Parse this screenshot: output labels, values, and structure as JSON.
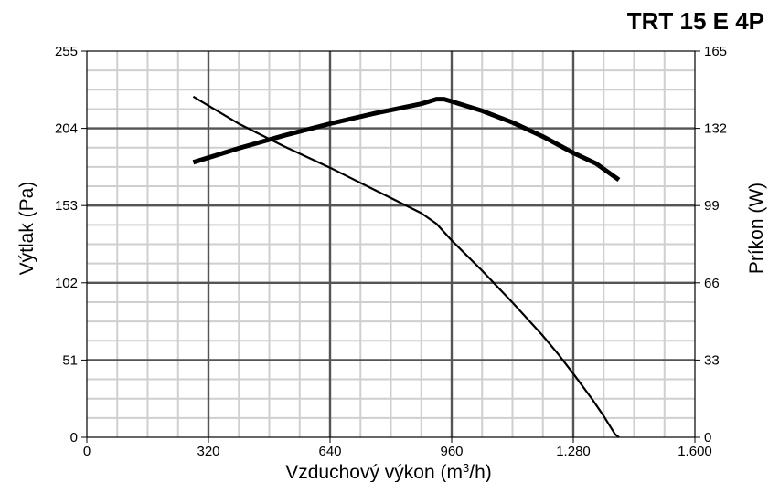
{
  "chart_data": {
    "type": "line",
    "title": "TRT 15 E 4P",
    "xlabel": {
      "main": "Vzduchový výkon (m",
      "sup": "3",
      "tail": "/h)"
    },
    "ylabel_left": "Výtlak (Pa)",
    "ylabel_right": "Príkon (W)",
    "xlim": [
      0,
      1600
    ],
    "ylim_left": [
      0,
      255
    ],
    "ylim_right": [
      0,
      165
    ],
    "x_ticks": [
      {
        "value": 0,
        "label": "0"
      },
      {
        "value": 320,
        "label": "320"
      },
      {
        "value": 640,
        "label": "640"
      },
      {
        "value": 960,
        "label": "960"
      },
      {
        "value": 1280,
        "label": "1.280"
      },
      {
        "value": 1600,
        "label": "1.600"
      }
    ],
    "y_left_ticks": [
      {
        "value": 0,
        "label": "0"
      },
      {
        "value": 51,
        "label": "51"
      },
      {
        "value": 102,
        "label": "102"
      },
      {
        "value": 153,
        "label": "153"
      },
      {
        "value": 204,
        "label": "204"
      },
      {
        "value": 255,
        "label": "255"
      }
    ],
    "y_right_ticks": [
      {
        "value": 0,
        "label": "0"
      },
      {
        "value": 33,
        "label": "33"
      },
      {
        "value": 66,
        "label": "66"
      },
      {
        "value": 99,
        "label": "99"
      },
      {
        "value": 132,
        "label": "132"
      },
      {
        "value": 165,
        "label": "165"
      }
    ],
    "minor_grid_x_step": 80,
    "minor_grid_y_left_step": 12.75,
    "grid": true,
    "series": [
      {
        "axis": "left",
        "style": "thin",
        "x": [
          280,
          400,
          520,
          640,
          760,
          880,
          920,
          960,
          1040,
          1120,
          1200,
          1240,
          1280,
          1330,
          1360,
          1390,
          1400
        ],
        "y": [
          225,
          207,
          192,
          178,
          163,
          148,
          141,
          130,
          110,
          89,
          67,
          55,
          42,
          25,
          14,
          2,
          0
        ]
      },
      {
        "axis": "right",
        "style": "thick",
        "x": [
          280,
          400,
          520,
          640,
          760,
          880,
          920,
          940,
          960,
          1040,
          1120,
          1200,
          1280,
          1340,
          1400
        ],
        "y": [
          117.5,
          123.5,
          129,
          134,
          138.5,
          142.5,
          144.5,
          144.5,
          143.5,
          139.5,
          134.5,
          128.5,
          121.5,
          117,
          110
        ]
      }
    ]
  }
}
